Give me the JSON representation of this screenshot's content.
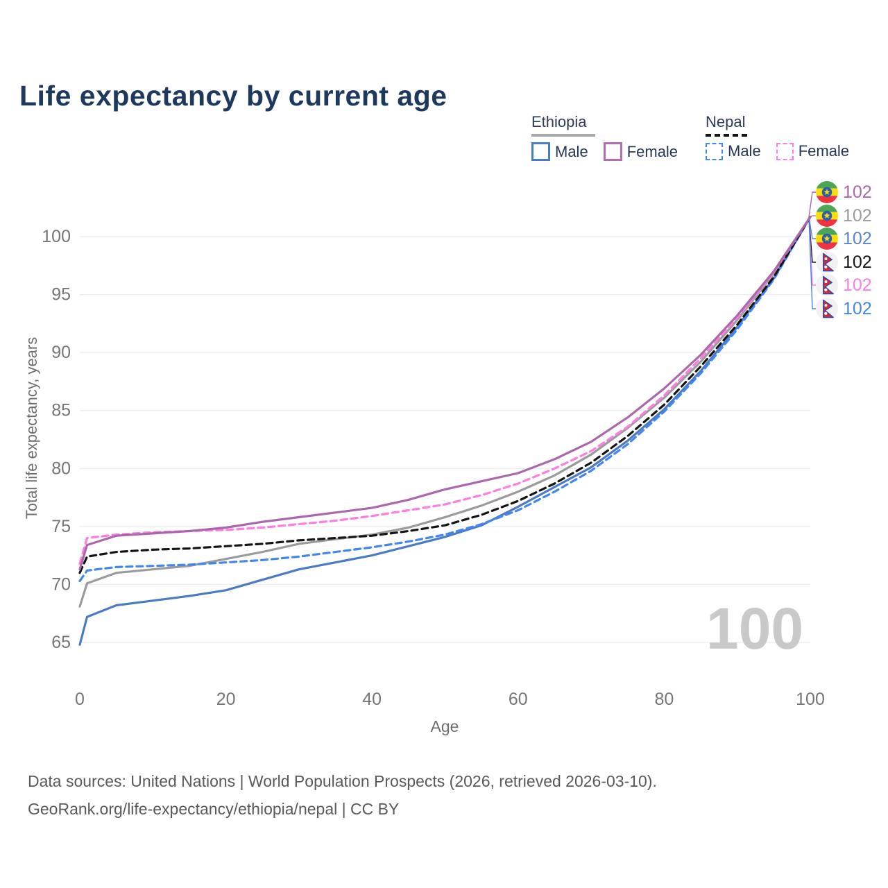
{
  "title": "Life expectancy by current age",
  "watermark": "100",
  "legend": {
    "groups": [
      {
        "country": "Ethiopia",
        "line_style": "solid",
        "underline_color": "#a8a8a8",
        "entries": [
          {
            "label": "Male",
            "color": "#4a7bc4"
          },
          {
            "label": "Female",
            "color": "#b06fb0"
          }
        ]
      },
      {
        "country": "Nepal",
        "line_style": "dashed",
        "underline_color": "#141414",
        "entries": [
          {
            "label": "Male",
            "color": "#4286f2"
          },
          {
            "label": "Female",
            "color": "#ff7ce1"
          }
        ]
      }
    ]
  },
  "endpoint_labels": [
    {
      "country": "Ethiopia",
      "series": "Ethiopia Female",
      "value": "102",
      "color": "#ab67ab"
    },
    {
      "country": "Ethiopia",
      "series": "Ethiopia Total",
      "value": "102",
      "color": "#9b9b9b"
    },
    {
      "country": "Ethiopia",
      "series": "Ethiopia Male",
      "value": "102",
      "color": "#5b84c8"
    },
    {
      "country": "Nepal",
      "series": "Nepal Total",
      "value": "102",
      "color": "#141414"
    },
    {
      "country": "Nepal",
      "series": "Nepal Female",
      "value": "102",
      "color": "#ff7ce1"
    },
    {
      "country": "Nepal",
      "series": "Nepal Male",
      "value": "102",
      "color": "#4286f2"
    }
  ],
  "source": {
    "line1": "Data sources: United Nations | World Population Prospects (2026, retrieved 2026-03-10).",
    "line2": "GeoRank.org/life-expectancy/ethiopia/nepal | CC BY"
  },
  "chart_data": {
    "type": "line",
    "title": "Life expectancy by current age",
    "xlabel": "Age",
    "ylabel": "Total life expectancy, years",
    "xlim": [
      0,
      100
    ],
    "ylim": [
      63,
      103
    ],
    "xticks": [
      0,
      20,
      40,
      60,
      80,
      100
    ],
    "yticks": [
      65,
      70,
      75,
      80,
      85,
      90,
      95,
      100
    ],
    "grid": "horizontal",
    "legend_position": "top-right",
    "current_age_frame": 100,
    "x": [
      0,
      1,
      5,
      10,
      15,
      20,
      25,
      30,
      35,
      40,
      45,
      50,
      55,
      60,
      65,
      70,
      75,
      80,
      85,
      90,
      95,
      100
    ],
    "series": [
      {
        "id": "ethiopia-total",
        "name": "Ethiopia",
        "country": "Ethiopia",
        "sex": "Both",
        "color": "#9b9b9b",
        "dashed": false,
        "values": [
          68.1,
          70.1,
          71.0,
          71.3,
          71.6,
          72.2,
          72.8,
          73.5,
          73.9,
          74.3,
          74.9,
          75.8,
          76.8,
          78.0,
          79.4,
          81.2,
          83.5,
          86.1,
          89.2,
          92.8,
          96.8,
          101.7
        ]
      },
      {
        "id": "ethiopia-male",
        "name": "Ethiopia Male",
        "country": "Ethiopia",
        "sex": "Male",
        "color": "#4a7bc4",
        "dashed": false,
        "values": [
          64.8,
          67.2,
          68.2,
          68.6,
          69.0,
          69.5,
          70.4,
          71.3,
          71.9,
          72.5,
          73.3,
          74.1,
          75.1,
          76.7,
          78.4,
          80.1,
          82.4,
          85.1,
          88.4,
          92.2,
          96.4,
          101.7
        ]
      },
      {
        "id": "nepal-male",
        "name": "Nepal Male",
        "country": "Nepal",
        "sex": "Male",
        "color": "#4286f2",
        "dashed": true,
        "values": [
          70.3,
          71.2,
          71.5,
          71.6,
          71.7,
          71.9,
          72.1,
          72.4,
          72.8,
          73.2,
          73.7,
          74.3,
          75.2,
          76.4,
          78.0,
          79.8,
          82.1,
          84.9,
          88.2,
          92.0,
          96.3,
          101.7
        ]
      },
      {
        "id": "nepal-total",
        "name": "Nepal",
        "country": "Nepal",
        "sex": "Both",
        "color": "#141414",
        "dashed": true,
        "values": [
          71.0,
          72.4,
          72.8,
          73.0,
          73.1,
          73.3,
          73.5,
          73.8,
          74.0,
          74.2,
          74.6,
          75.1,
          76.0,
          77.2,
          78.7,
          80.5,
          82.8,
          85.5,
          88.8,
          92.4,
          96.5,
          101.7
        ]
      },
      {
        "id": "nepal-female",
        "name": "Nepal Female",
        "country": "Nepal",
        "sex": "Female",
        "color": "#ff7ce1",
        "dashed": true,
        "values": [
          71.8,
          74.0,
          74.3,
          74.5,
          74.6,
          74.7,
          74.9,
          75.2,
          75.5,
          75.9,
          76.4,
          76.9,
          77.7,
          78.7,
          80.0,
          81.5,
          83.6,
          86.3,
          89.5,
          93.0,
          96.9,
          101.7
        ]
      },
      {
        "id": "ethiopia-female",
        "name": "Ethiopia Female",
        "country": "Ethiopia",
        "sex": "Female",
        "color": "#ab67ab",
        "dashed": false,
        "values": [
          71.3,
          73.4,
          74.2,
          74.4,
          74.6,
          74.9,
          75.4,
          75.8,
          76.2,
          76.6,
          77.3,
          78.2,
          78.9,
          79.6,
          80.8,
          82.3,
          84.4,
          86.9,
          89.8,
          93.2,
          97.0,
          101.7
        ]
      }
    ]
  }
}
